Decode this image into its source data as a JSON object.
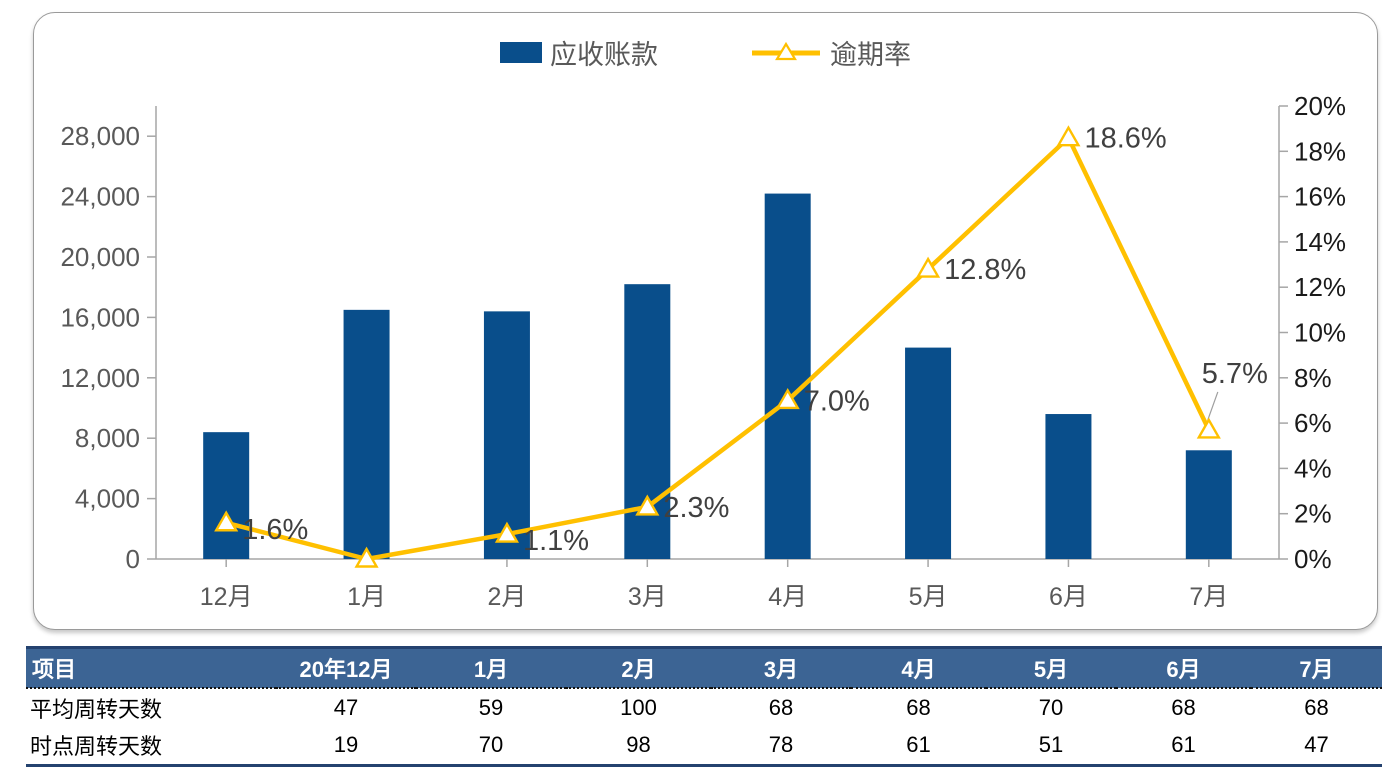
{
  "chart": {
    "legend": [
      {
        "label": "应收账款",
        "marker": "bar-swatch-icon"
      },
      {
        "label": "逾期率",
        "marker": "line-triangle-icon"
      }
    ]
  },
  "chart_data": {
    "type": "combo",
    "categories": [
      "12月",
      "1月",
      "2月",
      "3月",
      "4月",
      "5月",
      "6月",
      "7月"
    ],
    "series": [
      {
        "name": "应收账款",
        "type": "bar",
        "axis": "left",
        "values": [
          8400,
          16500,
          16400,
          18200,
          24200,
          14000,
          9600,
          7200
        ]
      },
      {
        "name": "逾期率",
        "type": "line",
        "axis": "right",
        "values": [
          1.6,
          0.0,
          1.1,
          2.3,
          7.0,
          12.8,
          18.6,
          5.7
        ],
        "point_labels": [
          "1.6%",
          "",
          "1.1%",
          "2.3%",
          "7.0%",
          "12.8%",
          "18.6%",
          "5.7%"
        ]
      }
    ],
    "left_axis": {
      "min": 0,
      "max": 30000,
      "tick_step": 4000,
      "tick_labels": [
        "0",
        "4,000",
        "8,000",
        "12,000",
        "16,000",
        "20,000",
        "24,000",
        "28,000"
      ]
    },
    "right_axis": {
      "min": 0,
      "max": 20,
      "tick_step": 2,
      "tick_labels": [
        "0%",
        "2%",
        "4%",
        "6%",
        "8%",
        "10%",
        "12%",
        "14%",
        "16%",
        "18%",
        "20%"
      ]
    },
    "grid": false,
    "legend_position": "top-center"
  },
  "colors": {
    "bar": "#094E8B",
    "line": "#FFC000",
    "marker_fill": "#FFFFFF",
    "axis_line": "#A6A6A6",
    "left_tick_text": "#595959",
    "right_tick_text": "#1A1A1A",
    "x_tick_text": "#595959",
    "data_label_text": "#404040",
    "table_header_bg": "#3C6494",
    "table_header_text": "#FFFFFF",
    "table_border": "#24426F"
  },
  "table": {
    "columns": [
      "项目",
      "20年12月",
      "1月",
      "2月",
      "3月",
      "4月",
      "5月",
      "6月",
      "7月"
    ],
    "rows": [
      {
        "label": "平均周转天数",
        "values": [
          "47",
          "59",
          "100",
          "68",
          "68",
          "70",
          "68",
          "68"
        ]
      },
      {
        "label": "时点周转天数",
        "values": [
          "19",
          "70",
          "98",
          "78",
          "61",
          "51",
          "61",
          "47"
        ]
      }
    ]
  }
}
